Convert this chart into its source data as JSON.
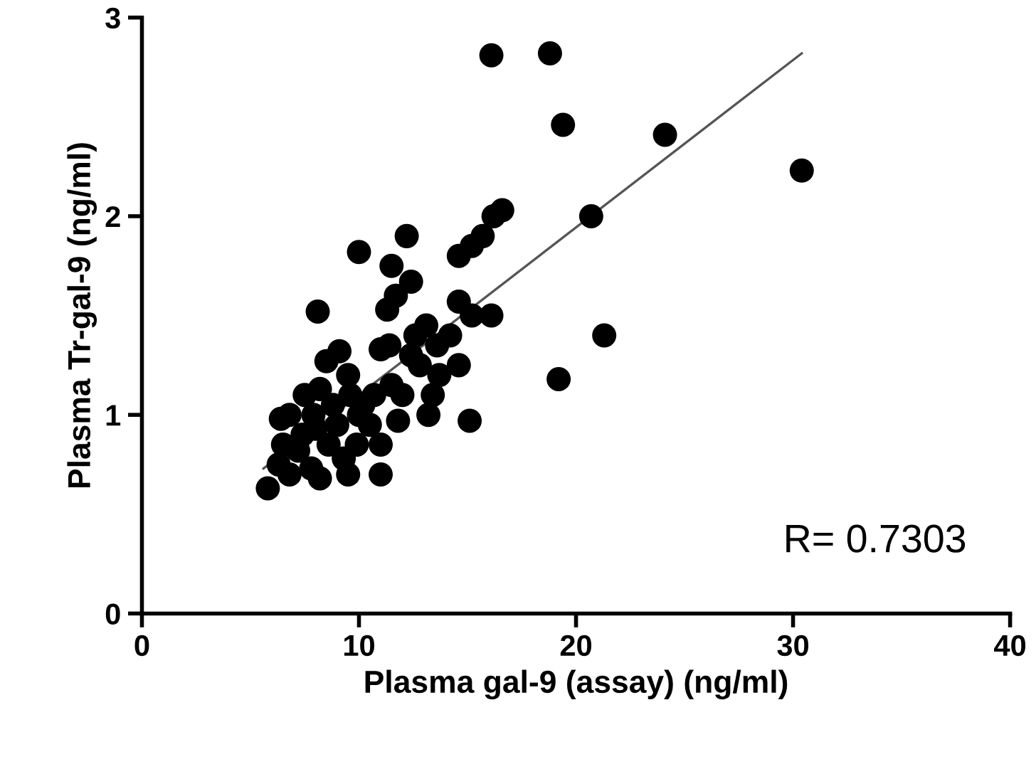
{
  "chart_data": {
    "type": "scatter",
    "xlabel": "Plasma gal-9 (assay) (ng/ml)",
    "ylabel": "Plasma Tr-gal-9 (ng/ml)",
    "xlim": [
      0,
      40
    ],
    "ylim": [
      0,
      3
    ],
    "xticks": [
      0,
      10,
      20,
      30,
      40
    ],
    "yticks": [
      0,
      1,
      2,
      3
    ],
    "grid": false,
    "annotations": [
      "R= 0.7303"
    ],
    "series": [
      {
        "color": "#000000",
        "marker": "circle",
        "x": [
          16.1,
          18.8,
          19.4,
          24.1,
          30.4,
          20.7,
          21.3,
          19.2,
          15.1,
          16.6,
          16.2,
          15.7,
          15.2,
          14.6,
          16.1,
          14.6,
          15.2,
          14.2,
          14.6,
          13.7,
          13.4,
          12.6,
          13.1,
          12.4,
          12.2,
          11.5,
          11.7,
          11.3,
          11.4,
          11.0,
          10.0,
          8.1,
          12.0,
          12.4,
          13.2,
          11.8,
          11.0,
          11.0,
          10.2,
          10.0,
          9.5,
          9.1,
          8.5,
          8.2,
          7.5,
          6.8,
          6.4,
          6.5,
          6.3,
          5.8,
          6.8,
          7.2,
          7.8,
          8.2,
          8.6,
          9.0,
          9.5,
          9.3,
          9.9,
          10.5,
          10.7,
          9.6,
          8.8,
          7.9,
          7.4,
          8.0,
          12.8,
          13.6,
          11.5
        ],
        "values": [
          2.81,
          2.82,
          2.46,
          2.41,
          2.23,
          2.0,
          1.4,
          1.18,
          0.97,
          2.03,
          2.0,
          1.9,
          1.85,
          1.8,
          1.5,
          1.57,
          1.5,
          1.4,
          1.25,
          1.2,
          1.1,
          1.4,
          1.45,
          1.67,
          1.9,
          1.75,
          1.6,
          1.53,
          1.35,
          1.33,
          1.82,
          1.52,
          1.1,
          1.3,
          1.0,
          0.97,
          0.85,
          0.7,
          1.05,
          1.0,
          1.2,
          1.32,
          1.27,
          1.13,
          1.1,
          1.0,
          0.98,
          0.85,
          0.75,
          0.63,
          0.7,
          0.82,
          0.73,
          0.68,
          0.85,
          0.95,
          0.7,
          0.78,
          0.85,
          0.95,
          1.1,
          1.1,
          1.05,
          1.0,
          0.9,
          0.93,
          1.25,
          1.35,
          1.15
        ]
      },
      {
        "type": "line",
        "color": "#555555",
        "x": [
          5.6,
          30.4
        ],
        "values": [
          0.73,
          2.82
        ]
      }
    ]
  }
}
